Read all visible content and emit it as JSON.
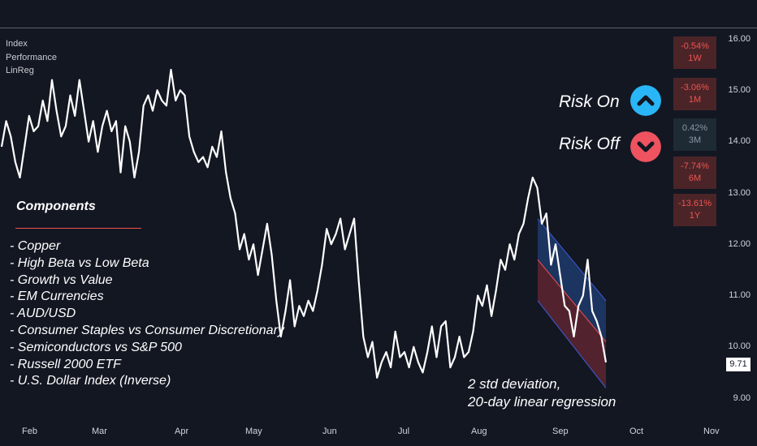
{
  "legend": [
    "Index",
    "Performance",
    "LinReg"
  ],
  "chart_data": {
    "type": "line",
    "ylim": [
      8.5,
      16.1
    ],
    "y_ticks": [
      "16.00",
      "15.00",
      "14.00",
      "13.00",
      "12.00",
      "11.00",
      "10.00",
      "9.00"
    ],
    "x_ticks": [
      "Feb",
      "Mar",
      "Apr",
      "May",
      "Jun",
      "Jul",
      "Aug",
      "Sep",
      "Oct",
      "Nov"
    ],
    "last_value_label": "9.71",
    "series": [
      {
        "values": [
          13.9,
          14.4,
          14.1,
          13.6,
          13.3,
          13.9,
          14.5,
          14.2,
          14.3,
          14.8,
          14.4,
          15.2,
          14.6,
          14.1,
          14.3,
          14.9,
          14.5,
          15.2,
          14.6,
          14.0,
          14.4,
          13.8,
          14.3,
          14.6,
          14.2,
          14.4,
          13.4,
          14.3,
          14.0,
          13.3,
          13.8,
          14.7,
          14.9,
          14.6,
          15.0,
          14.8,
          14.7,
          15.4,
          14.8,
          15.0,
          14.9,
          14.1,
          13.8,
          13.6,
          13.7,
          13.5,
          13.9,
          13.7,
          14.2,
          13.4,
          12.9,
          12.6,
          11.9,
          12.2,
          11.7,
          12.0,
          11.4,
          11.9,
          12.4,
          11.8,
          10.9,
          10.2,
          10.7,
          11.3,
          10.4,
          10.8,
          10.6,
          10.9,
          10.7,
          11.1,
          11.6,
          12.3,
          12.0,
          12.2,
          12.5,
          11.9,
          12.2,
          12.5,
          11.3,
          10.2,
          9.8,
          10.1,
          9.4,
          9.7,
          9.9,
          9.6,
          10.3,
          9.8,
          9.9,
          9.6,
          10.0,
          9.7,
          9.5,
          9.9,
          10.4,
          9.8,
          10.4,
          10.5,
          9.6,
          9.8,
          10.2,
          9.8,
          9.9,
          10.3,
          11.0,
          10.8,
          11.2,
          10.6,
          11.1,
          11.7,
          11.5,
          12.0,
          11.7,
          12.2,
          12.4,
          12.9,
          13.3,
          13.1,
          12.4,
          12.6,
          11.6,
          12.0,
          11.4,
          10.8,
          10.7,
          10.2,
          10.8,
          11.0,
          11.7,
          10.7,
          10.5,
          10.2,
          9.7
        ]
      }
    ],
    "regression_channel": {
      "upper_start": 12.5,
      "mid_start": 11.7,
      "lower_start": 10.9,
      "upper_end": 10.9,
      "mid_end": 10.1,
      "lower_end": 9.2
    }
  },
  "components": {
    "title": "Components",
    "items": [
      "- Copper",
      "- High Beta vs Low Beta",
      "- Growth vs Value",
      "- EM Currencies",
      "- AUD/USD",
      "- Consumer Staples vs Consumer Discretionary",
      "- Semiconductors vs S&P 500",
      "- Russell 2000 ETF",
      "- U.S. Dollar Index (Inverse)"
    ]
  },
  "annotation": {
    "line1": "2 std deviation,",
    "line2": "20-day linear regression"
  },
  "risk": {
    "on_label": "Risk On",
    "off_label": "Risk Off",
    "on_color": "#29b6f6",
    "off_color": "#ef5360"
  },
  "performance": [
    {
      "value": "-0.54%",
      "period": "1W",
      "sign": "neg"
    },
    {
      "value": "-3.06%",
      "period": "1M",
      "sign": "neg"
    },
    {
      "value": "0.42%",
      "period": "3M",
      "sign": "pos"
    },
    {
      "value": "-7.74%",
      "period": "6M",
      "sign": "neg"
    },
    {
      "value": "-13.61%",
      "period": "1Y",
      "sign": "neg"
    }
  ],
  "colors": {
    "background": "#131722",
    "line": "#ffffff",
    "negative": "#ef5350",
    "channel_upper_fill": "#1f3a6b",
    "channel_lower_fill": "#5a2530",
    "channel_edge": "#3d5bd9",
    "channel_mid": "#ef5350"
  }
}
